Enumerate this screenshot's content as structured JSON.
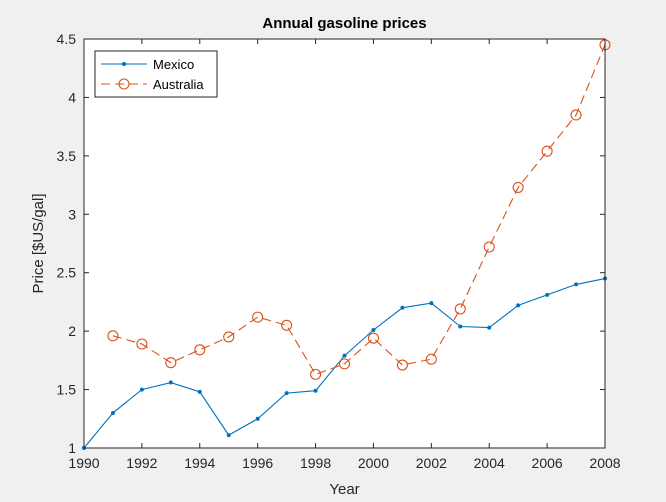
{
  "chart_data": {
    "type": "line",
    "title": "Annual gasoline prices",
    "xlabel": "Year",
    "ylabel": "Price [$US/gal]",
    "xlim": [
      1990,
      2008
    ],
    "ylim": [
      1,
      4.5
    ],
    "xticks": [
      1990,
      1992,
      1994,
      1996,
      1998,
      2000,
      2002,
      2004,
      2006,
      2008
    ],
    "yticks": [
      1,
      1.5,
      2,
      2.5,
      3,
      3.5,
      4,
      4.5
    ],
    "xtick_labels": [
      "1990",
      "1992",
      "1994",
      "1996",
      "1998",
      "2000",
      "2002",
      "2004",
      "2006",
      "2008"
    ],
    "ytick_labels": [
      "1",
      "1.5",
      "2",
      "2.5",
      "3",
      "3.5",
      "4",
      "4.5"
    ],
    "grid": false,
    "legend_position": "top-left",
    "series": [
      {
        "name": "Mexico",
        "color": "#0072bd",
        "style": "solid",
        "marker": "dot",
        "x": [
          1990,
          1991,
          1992,
          1993,
          1994,
          1995,
          1996,
          1997,
          1998,
          1999,
          2000,
          2001,
          2002,
          2003,
          2004,
          2005,
          2006,
          2007,
          2008
        ],
        "y": [
          1.0,
          1.3,
          1.5,
          1.56,
          1.48,
          1.11,
          1.25,
          1.47,
          1.49,
          1.79,
          2.01,
          2.2,
          2.24,
          2.04,
          2.03,
          2.22,
          2.31,
          2.4,
          2.45
        ]
      },
      {
        "name": "Australia",
        "color": "#d95319",
        "style": "dashed",
        "marker": "circle",
        "x": [
          1991,
          1992,
          1993,
          1994,
          1995,
          1996,
          1997,
          1998,
          1999,
          2000,
          2001,
          2002,
          2003,
          2004,
          2005,
          2006,
          2007,
          2008
        ],
        "y": [
          1.96,
          1.89,
          1.73,
          1.84,
          1.95,
          2.12,
          2.05,
          1.63,
          1.72,
          1.94,
          1.71,
          1.76,
          2.19,
          2.72,
          3.23,
          3.54,
          3.85,
          4.45
        ]
      }
    ]
  }
}
